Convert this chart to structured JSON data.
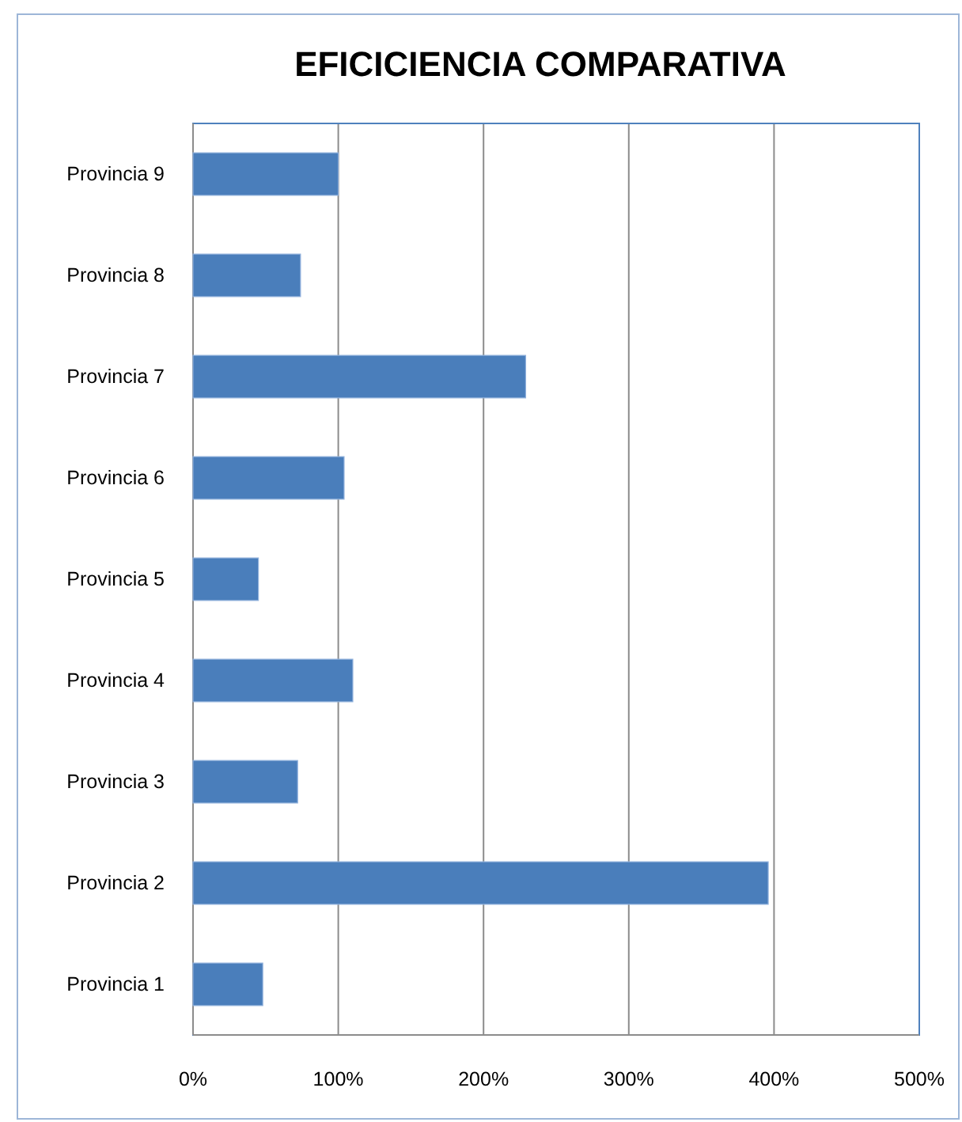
{
  "chart_data": {
    "type": "bar",
    "orientation": "horizontal",
    "title": "EFICICIENCIA COMPARATIVA",
    "categories": [
      "Provincia 9",
      "Provincia 8",
      "Provincia 7",
      "Provincia 6",
      "Provincia 5",
      "Provincia 4",
      "Provincia 3",
      "Provincia 2",
      "Provincia 1"
    ],
    "values": [
      100,
      74,
      229,
      104,
      45,
      110,
      72,
      396,
      48
    ],
    "color": "#4a7ebb",
    "xlim": [
      0,
      500
    ],
    "xticks": [
      {
        "value": 0,
        "label": "0%"
      },
      {
        "value": 100,
        "label": "100%"
      },
      {
        "value": 200,
        "label": "200%"
      },
      {
        "value": 300,
        "label": "300%"
      },
      {
        "value": 400,
        "label": "400%"
      },
      {
        "value": 500,
        "label": "500%"
      }
    ],
    "grid": "x"
  }
}
